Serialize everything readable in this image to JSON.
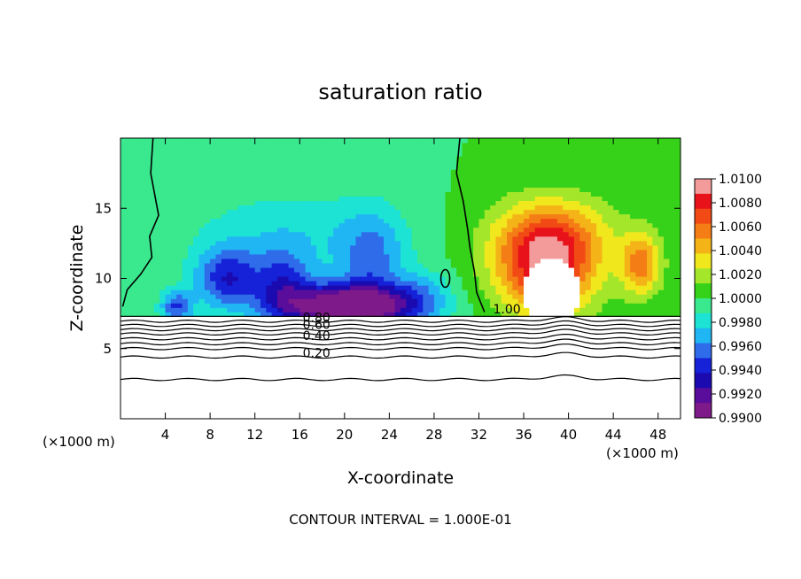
{
  "chart_data": {
    "type": "heatmap",
    "title": "saturation ratio",
    "xlabel": "X-coordinate",
    "ylabel": "Z-coordinate",
    "x_unit_left": "(×1000 m)",
    "x_unit_right": "(×1000 m)",
    "footer": "CONTOUR INTERVAL = 1.000E-01",
    "xlim": [
      0,
      50
    ],
    "ylim": [
      0,
      20
    ],
    "xticks": [
      4,
      8,
      12,
      16,
      20,
      24,
      28,
      32,
      36,
      40,
      44,
      48
    ],
    "yticks": [
      5,
      10,
      15
    ],
    "colorbar": {
      "range": [
        0.99,
        1.01
      ],
      "ticks": [
        "1.0100",
        "1.0080",
        "1.0060",
        "1.0040",
        "1.0020",
        "1.0000",
        "0.9980",
        "0.9960",
        "0.9940",
        "0.9920",
        "0.9900"
      ],
      "colors": [
        "#f39a9a",
        "#e8131a",
        "#f24a15",
        "#f57d16",
        "#f4b418",
        "#f0e81c",
        "#a4e62a",
        "#36d21a",
        "#3ae88e",
        "#1ce3d4",
        "#20b6f4",
        "#2e6cea",
        "#1622d8",
        "#1a0ab0",
        "#5a0c9a",
        "#7f1a8a"
      ]
    },
    "contour_labels": [
      {
        "text": "1.00",
        "x": 34.5,
        "z": 7.5
      },
      {
        "text": "0.80",
        "x": 17.5,
        "z": 6.9
      },
      {
        "text": "0.60",
        "x": 17.5,
        "z": 6.4
      },
      {
        "text": "0.40",
        "x": 17.5,
        "z": 5.6
      },
      {
        "text": "0.20",
        "x": 17.5,
        "z": 4.4
      }
    ],
    "contour_z_levels": [
      6.95,
      6.65,
      6.35,
      6.05,
      5.7,
      5.35,
      5.0,
      4.4,
      2.8
    ],
    "cloud_base_z": 7.3,
    "fields": {
      "ambient": 1.0,
      "blobs": [
        {
          "x": 20.5,
          "z": 8.0,
          "sx": 6.0,
          "sz": 1.6,
          "amp": -0.0115
        },
        {
          "x": 9.5,
          "z": 10.0,
          "sx": 2.8,
          "sz": 2.2,
          "amp": -0.0055
        },
        {
          "x": 14.5,
          "z": 9.5,
          "sx": 2.5,
          "sz": 2.5,
          "amp": -0.0045
        },
        {
          "x": 22.5,
          "z": 11.5,
          "sx": 3.0,
          "sz": 3.5,
          "amp": -0.0035
        },
        {
          "x": 15.0,
          "z": 13.0,
          "sx": 9.0,
          "sz": 3.5,
          "amp": -0.0022
        },
        {
          "x": 5.0,
          "z": 8.0,
          "sx": 1.5,
          "sz": 1.2,
          "amp": -0.005
        },
        {
          "x": 27.0,
          "z": 9.0,
          "sx": 2.5,
          "sz": 1.8,
          "amp": -0.002
        },
        {
          "x": 38.0,
          "z": 11.0,
          "sx": 4.5,
          "sz": 3.5,
          "amp": 0.009
        },
        {
          "x": 46.5,
          "z": 11.0,
          "sx": 1.8,
          "sz": 2.2,
          "amp": 0.0055
        },
        {
          "x": 39.0,
          "z": 13.5,
          "sx": 6.0,
          "sz": 2.6,
          "amp": 0.0025
        }
      ],
      "saturated_core": {
        "x": 38.5,
        "z": 9.0,
        "sx": 2.5,
        "sz": 2.4
      }
    }
  }
}
